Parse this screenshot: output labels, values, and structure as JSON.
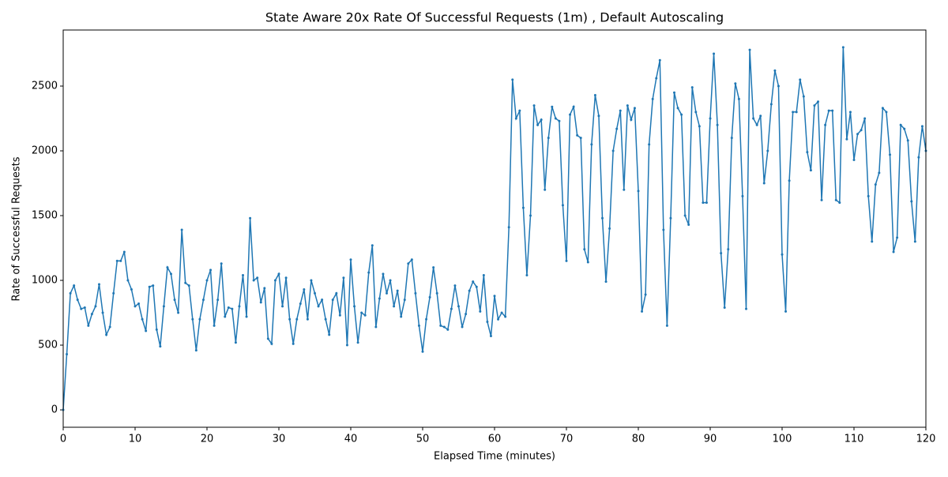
{
  "chart_data": {
    "type": "line",
    "title": "State Aware 20x Rate Of Successful Requests (1m) , Default Autoscaling",
    "x_label": "Elapsed Time (minutes)",
    "y_label": "Rate of Successful Requests",
    "color": "#1f77b4",
    "xlim": [
      0,
      120
    ],
    "ylim": [
      -134,
      2933
    ],
    "xticks": [
      0,
      10,
      20,
      30,
      40,
      50,
      60,
      70,
      80,
      90,
      100,
      110,
      120
    ],
    "yticks": [
      0,
      500,
      1000,
      1500,
      2000,
      2500
    ],
    "x": [
      0,
      0.5,
      1,
      1.5,
      2,
      2.5,
      3,
      3.5,
      4,
      4.5,
      5,
      5.5,
      6,
      6.5,
      7,
      7.5,
      8,
      8.5,
      9,
      9.5,
      10,
      10.5,
      11,
      11.5,
      12,
      12.5,
      13,
      13.5,
      14,
      14.5,
      15,
      15.5,
      16,
      16.5,
      17,
      17.5,
      18,
      18.5,
      19,
      19.5,
      20,
      20.5,
      21,
      21.5,
      22,
      22.5,
      23,
      23.5,
      24,
      24.5,
      25,
      25.5,
      26,
      26.5,
      27,
      27.5,
      28,
      28.5,
      29,
      29.5,
      30,
      30.5,
      31,
      31.5,
      32,
      32.5,
      33,
      33.5,
      34,
      34.5,
      35,
      35.5,
      36,
      36.5,
      37,
      37.5,
      38,
      38.5,
      39,
      39.5,
      40,
      40.5,
      41,
      41.5,
      42,
      42.5,
      43,
      43.5,
      44,
      44.5,
      45,
      45.5,
      46,
      46.5,
      47,
      47.5,
      48,
      48.5,
      49,
      49.5,
      50,
      50.5,
      51,
      51.5,
      52,
      52.5,
      53,
      53.5,
      54,
      54.5,
      55,
      55.5,
      56,
      56.5,
      57,
      57.5,
      58,
      58.5,
      59,
      59.5,
      60,
      60.5,
      61,
      61.5,
      62,
      62.5,
      63,
      63.5,
      64,
      64.5,
      65,
      65.5,
      66,
      66.5,
      67,
      67.5,
      68,
      68.5,
      69,
      69.5,
      70,
      70.5,
      71,
      71.5,
      72,
      72.5,
      73,
      73.5,
      74,
      74.5,
      75,
      75.5,
      76,
      76.5,
      77,
      77.5,
      78,
      78.5,
      79,
      79.5,
      80,
      80.5,
      81,
      81.5,
      82,
      82.5,
      83,
      83.5,
      84,
      84.5,
      85,
      85.5,
      86,
      86.5,
      87,
      87.5,
      88,
      88.5,
      89,
      89.5,
      90,
      90.5,
      91,
      91.5,
      92,
      92.5,
      93,
      93.5,
      94,
      94.5,
      95,
      95.5,
      96,
      96.5,
      97,
      97.5,
      98,
      98.5,
      99,
      99.5,
      100,
      100.5,
      101,
      101.5,
      102,
      102.5,
      103,
      103.5,
      104,
      104.5,
      105,
      105.5,
      106,
      106.5,
      107,
      107.5,
      108,
      108.5,
      109,
      109.5,
      110,
      110.5,
      111,
      111.5,
      112,
      112.5,
      113,
      113.5,
      114,
      114.5,
      115,
      115.5,
      116,
      116.5,
      117,
      117.5,
      118,
      118.5,
      119,
      119.5,
      120
    ],
    "values": [
      0,
      430,
      900,
      960,
      850,
      780,
      790,
      650,
      740,
      800,
      970,
      750,
      580,
      640,
      900,
      1150,
      1150,
      1220,
      1000,
      930,
      800,
      820,
      700,
      610,
      950,
      960,
      620,
      490,
      800,
      1100,
      1050,
      850,
      750,
      1390,
      980,
      960,
      700,
      460,
      700,
      850,
      1000,
      1080,
      650,
      850,
      1130,
      720,
      790,
      780,
      520,
      800,
      1040,
      720,
      1480,
      1000,
      1020,
      830,
      940,
      550,
      510,
      1000,
      1050,
      800,
      1020,
      700,
      510,
      700,
      820,
      930,
      700,
      1000,
      900,
      800,
      850,
      700,
      580,
      850,
      900,
      730,
      1020,
      500,
      1160,
      800,
      520,
      750,
      730,
      1060,
      1270,
      640,
      860,
      1050,
      900,
      1000,
      800,
      920,
      720,
      850,
      1130,
      1160,
      900,
      650,
      450,
      700,
      870,
      1100,
      900,
      650,
      640,
      620,
      780,
      960,
      800,
      640,
      740,
      920,
      990,
      950,
      760,
      1040,
      680,
      570,
      880,
      700,
      750,
      720,
      1410,
      2550,
      2250,
      2310,
      1560,
      1040,
      1500,
      2350,
      2200,
      2240,
      1700,
      2100,
      2340,
      2250,
      2230,
      1580,
      1150,
      2280,
      2340,
      2120,
      2100,
      1240,
      1140,
      2050,
      2430,
      2270,
      1480,
      990,
      1400,
      2000,
      2170,
      2310,
      1700,
      2350,
      2240,
      2330,
      1690,
      760,
      890,
      2050,
      2400,
      2560,
      2700,
      1390,
      650,
      1480,
      2450,
      2330,
      2280,
      1500,
      1430,
      2490,
      2300,
      2190,
      1600,
      1600,
      2250,
      2750,
      2200,
      1210,
      790,
      1240,
      2100,
      2520,
      2400,
      1650,
      780,
      2780,
      2250,
      2200,
      2270,
      1750,
      2000,
      2360,
      2620,
      2500,
      1200,
      760,
      1770,
      2300,
      2300,
      2550,
      2420,
      1990,
      1850,
      2350,
      2380,
      1620,
      2200,
      2310,
      2310,
      1620,
      1600,
      2800,
      2090,
      2300,
      1930,
      2130,
      2160,
      2250,
      1650,
      1300,
      1740,
      1830,
      2330,
      2300,
      1970,
      1220,
      1330,
      2200,
      2170,
      2080,
      1610,
      1300,
      1950,
      2190,
      2000
    ]
  }
}
